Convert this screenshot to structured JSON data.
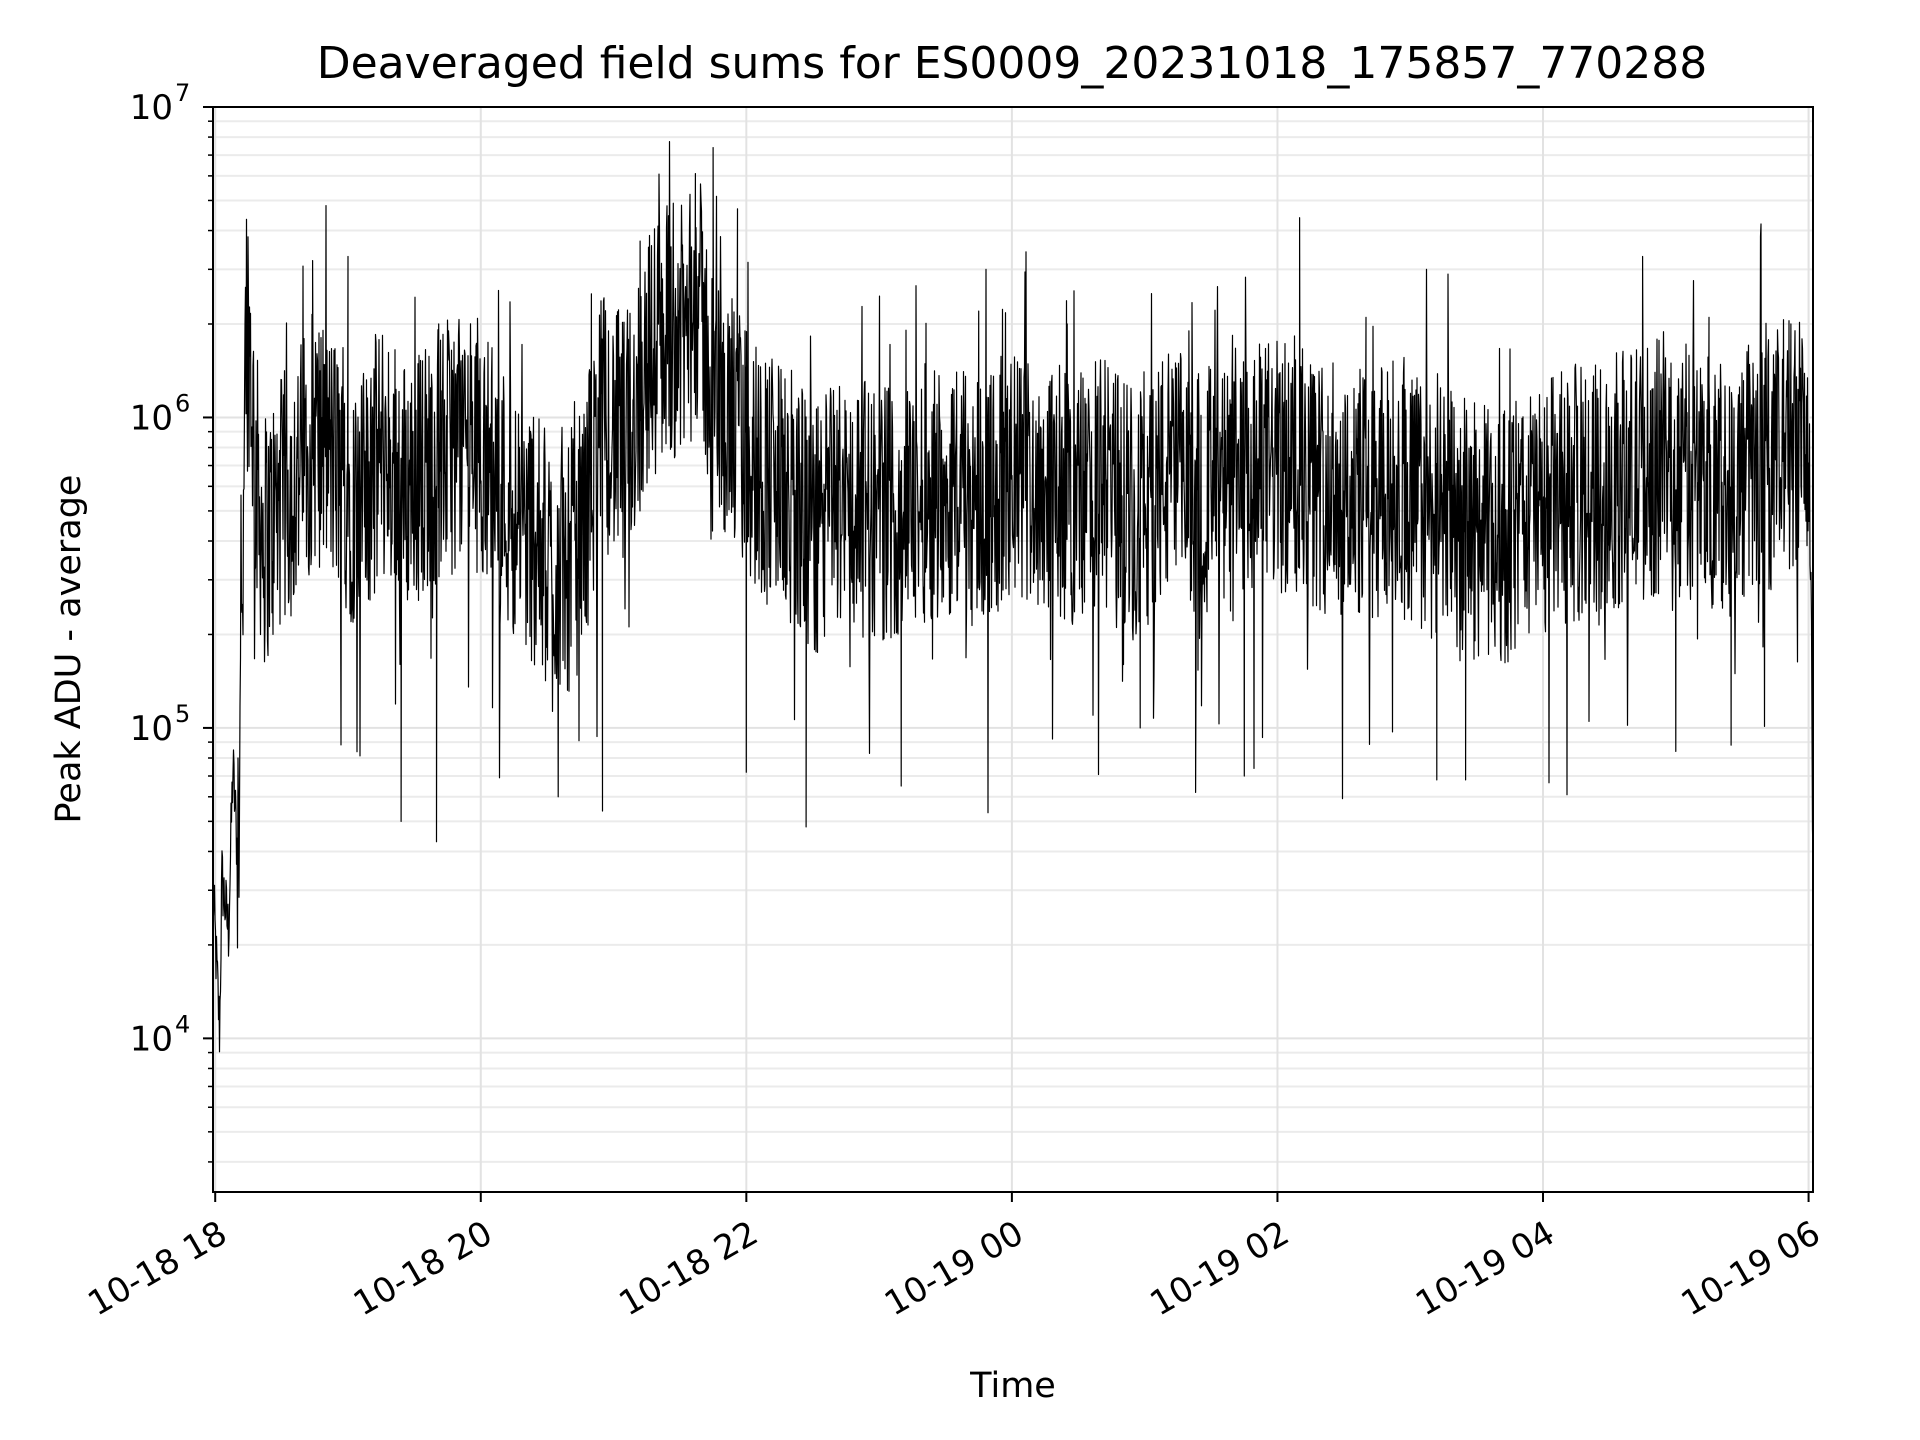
{
  "chart_data": {
    "type": "line",
    "title": "Deaveraged field sums for ES0009_20231018_175857_770288",
    "xlabel": "Time",
    "ylabel": "Peak ADU - average",
    "xlim": [
      "2023-10-18 17:59",
      "2023-10-19 06:02"
    ],
    "ylim": [
      3200,
      10000000
    ],
    "y_scale": "log",
    "grid": true,
    "line_color": "#000000",
    "x_ticks": [
      {
        "value": "2023-10-18 18:00",
        "label": "10-18 18"
      },
      {
        "value": "2023-10-18 20:00",
        "label": "10-18 20"
      },
      {
        "value": "2023-10-18 22:00",
        "label": "10-18 22"
      },
      {
        "value": "2023-10-19 00:00",
        "label": "10-19 00"
      },
      {
        "value": "2023-10-19 02:00",
        "label": "10-19 02"
      },
      {
        "value": "2023-10-19 04:00",
        "label": "10-19 04"
      },
      {
        "value": "2023-10-19 06:00",
        "label": "10-19 06"
      }
    ],
    "y_ticks": [
      {
        "value": 10000,
        "base": "10",
        "exp": "4"
      },
      {
        "value": 100000,
        "base": "10",
        "exp": "5"
      },
      {
        "value": 1000000,
        "base": "10",
        "exp": "6"
      },
      {
        "value": 10000000,
        "base": "10",
        "exp": "7"
      }
    ],
    "series": [
      {
        "x": [
          "2023-10-18 17:59",
          "2023-10-18 18:02",
          "2023-10-18 18:03",
          "2023-10-18 18:06",
          "2023-10-18 18:08",
          "2023-10-18 18:10",
          "2023-10-18 18:14",
          "2023-10-18 18:16",
          "2023-10-18 18:18",
          "2023-10-18 18:22",
          "2023-10-18 18:28",
          "2023-10-18 18:35",
          "2023-10-18 18:45",
          "2023-10-18 18:55",
          "2023-10-18 19:05",
          "2023-10-18 19:15",
          "2023-10-18 19:25",
          "2023-10-18 19:35",
          "2023-10-18 19:45",
          "2023-10-18 19:55",
          "2023-10-18 20:05",
          "2023-10-18 20:15",
          "2023-10-18 20:25",
          "2023-10-18 20:35",
          "2023-10-18 20:45",
          "2023-10-18 20:55",
          "2023-10-18 21:05",
          "2023-10-18 21:15",
          "2023-10-18 21:25",
          "2023-10-18 21:32",
          "2023-10-18 21:38",
          "2023-10-18 21:45",
          "2023-10-18 21:55",
          "2023-10-18 22:05",
          "2023-10-18 22:15",
          "2023-10-18 22:25",
          "2023-10-18 22:30",
          "2023-10-18 22:40",
          "2023-10-18 22:55",
          "2023-10-18 23:10",
          "2023-10-18 23:25",
          "2023-10-18 23:40",
          "2023-10-18 23:55",
          "2023-10-19 00:10",
          "2023-10-19 00:25",
          "2023-10-19 00:40",
          "2023-10-19 00:55",
          "2023-10-19 01:10",
          "2023-10-19 01:25",
          "2023-10-19 01:40",
          "2023-10-19 01:55",
          "2023-10-19 02:10",
          "2023-10-19 02:25",
          "2023-10-19 02:40",
          "2023-10-19 02:55",
          "2023-10-19 03:10",
          "2023-10-19 03:25",
          "2023-10-19 03:40",
          "2023-10-19 03:55",
          "2023-10-19 04:10",
          "2023-10-19 04:25",
          "2023-10-19 04:40",
          "2023-10-19 04:55",
          "2023-10-19 05:10",
          "2023-10-19 05:25",
          "2023-10-19 05:40",
          "2023-10-19 05:50",
          "2023-10-19 05:58",
          "2023-10-19 06:00",
          "2023-10-19 06:02"
        ],
        "y": [
          30000,
          10500,
          33000,
          22000,
          75000,
          40000,
          2500000,
          1500000,
          700000,
          400000,
          500000,
          600000,
          900000,
          700000,
          500000,
          800000,
          600000,
          700000,
          800000,
          900000,
          700000,
          500000,
          400000,
          300000,
          400000,
          1000000,
          800000,
          1500000,
          2000000,
          1800000,
          2500000,
          1200000,
          900000,
          700000,
          600000,
          500000,
          400000,
          550000,
          500000,
          500000,
          600000,
          550000,
          600000,
          650000,
          550000,
          600000,
          500000,
          650000,
          600000,
          550000,
          700000,
          650000,
          600000,
          550000,
          600000,
          500000,
          450000,
          400000,
          500000,
          550000,
          600000,
          650000,
          700000,
          650000,
          600000,
          700000,
          800000,
          900000,
          700000,
          70000
        ],
        "spikes": [
          [
            "2023-10-18 18:44",
            3200000
          ],
          [
            "2023-10-18 19:00",
            3300000
          ],
          [
            "2023-10-18 19:41",
            2000000
          ],
          [
            "2023-10-18 20:50",
            2500000
          ],
          [
            "2023-10-18 21:12",
            3700000
          ],
          [
            "2023-10-18 21:27",
            4900000
          ],
          [
            "2023-10-18 21:37",
            6100000
          ],
          [
            "2023-10-18 21:45",
            7400000
          ],
          [
            "2023-10-18 21:56",
            4700000
          ],
          [
            "2023-10-18 23:35",
            1400000
          ],
          [
            "2023-10-18 23:45",
            2200000
          ],
          [
            "2023-10-19 00:25",
            2000000
          ],
          [
            "2023-10-19 01:20",
            1900000
          ],
          [
            "2023-10-19 02:10",
            4400000
          ],
          [
            "2023-10-19 02:40",
            2100000
          ],
          [
            "2023-10-19 04:45",
            3300000
          ],
          [
            "2023-10-19 05:15",
            2100000
          ],
          [
            "2023-10-19 05:52",
            2000000
          ]
        ],
        "dips": [
          [
            "2023-10-18 19:24",
            50000
          ],
          [
            "2023-10-18 19:40",
            43000
          ],
          [
            "2023-10-18 20:35",
            60000
          ],
          [
            "2023-10-18 20:55",
            54000
          ],
          [
            "2023-10-18 22:00",
            72000
          ],
          [
            "2023-10-18 22:27",
            48000
          ],
          [
            "2023-10-18 23:10",
            65000
          ],
          [
            "2023-10-19 00:58",
            100000
          ],
          [
            "2023-10-19 01:23",
            62000
          ],
          [
            "2023-10-19 01:45",
            70000
          ],
          [
            "2023-10-19 03:12",
            68000
          ],
          [
            "2023-10-19 03:25",
            68000
          ],
          [
            "2023-10-19 05:00",
            84000
          ],
          [
            "2023-10-19 05:25",
            88000
          ]
        ]
      }
    ]
  }
}
